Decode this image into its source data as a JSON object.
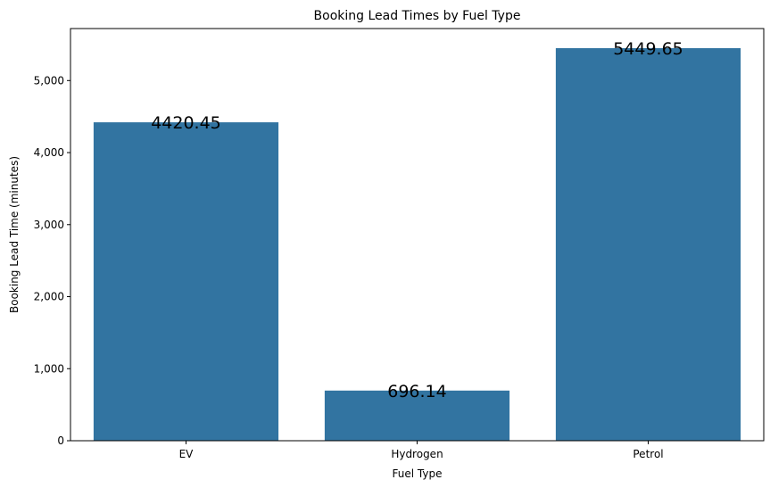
{
  "chart_data": {
    "type": "bar",
    "title": "Booking Lead Times by Fuel Type",
    "xlabel": "Fuel Type",
    "ylabel": "Booking Lead Time (minutes)",
    "categories": [
      "EV",
      "Hydrogen",
      "Petrol"
    ],
    "values": [
      4420.45,
      696.14,
      5449.65
    ],
    "data_labels": [
      "4420.45",
      "696.14",
      "5449.65"
    ],
    "ylim": [
      0,
      5722
    ],
    "yticks": [
      0,
      1000,
      2000,
      3000,
      4000,
      5000
    ],
    "ytick_labels": [
      "0",
      "1,000",
      "2,000",
      "3,000",
      "4,000",
      "5,000"
    ],
    "grid": false,
    "bar_color": "#3274a1"
  }
}
